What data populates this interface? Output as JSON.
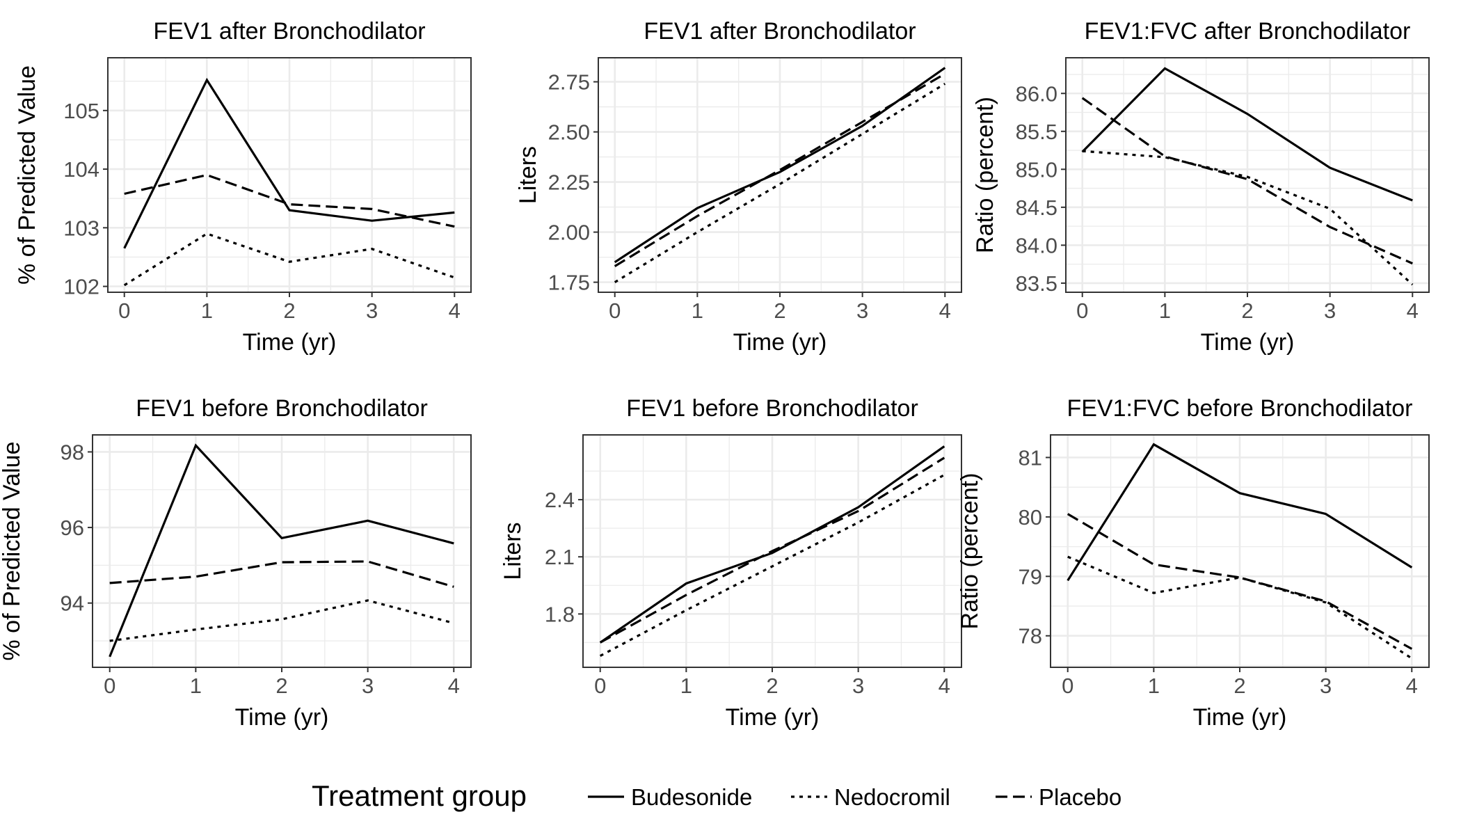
{
  "legend": {
    "title": "Treatment group",
    "position": "bottom",
    "entries": [
      {
        "name": "Budesonide",
        "linetype": "solid"
      },
      {
        "name": "Nedocromil",
        "linetype": "dotted"
      },
      {
        "name": "Placebo",
        "linetype": "dashed"
      }
    ]
  },
  "colors": {
    "line": "#000000",
    "grid": "#ebebeb",
    "border": "#333333",
    "tick_text": "#4d4d4d"
  },
  "chart_data": [
    {
      "type": "line",
      "title": "FEV1 after Bronchodilator",
      "xlabel": "Time (yr)",
      "ylabel": "% of Predicted Value",
      "x": [
        0,
        1,
        2,
        3,
        4
      ],
      "xticks": [
        0,
        1,
        2,
        3,
        4
      ],
      "xlim": [
        -0.2,
        4.2
      ],
      "ylim": [
        101.9,
        105.9
      ],
      "yticks": [
        102,
        103,
        104,
        105
      ],
      "ytick_labels": [
        "102",
        "103",
        "104",
        "105"
      ],
      "grid": true,
      "series": [
        {
          "name": "Budesonide",
          "values": [
            102.65,
            105.52,
            103.3,
            103.12,
            103.26
          ]
        },
        {
          "name": "Nedocromil",
          "values": [
            102.02,
            102.9,
            102.42,
            102.64,
            102.15
          ]
        },
        {
          "name": "Placebo",
          "values": [
            103.58,
            103.9,
            103.4,
            103.32,
            103.02
          ]
        }
      ]
    },
    {
      "type": "line",
      "title": "FEV1 after Bronchodilator",
      "xlabel": "Time (yr)",
      "ylabel": "Liters",
      "x": [
        0,
        1,
        2,
        3,
        4
      ],
      "xticks": [
        0,
        1,
        2,
        3,
        4
      ],
      "xlim": [
        -0.2,
        4.2
      ],
      "ylim": [
        1.7,
        2.87
      ],
      "yticks": [
        1.75,
        2.0,
        2.25,
        2.5,
        2.75
      ],
      "ytick_labels": [
        "1.75",
        "2.00",
        "2.25",
        "2.50",
        "2.75"
      ],
      "grid": true,
      "series": [
        {
          "name": "Budesonide",
          "values": [
            1.85,
            2.12,
            2.3,
            2.53,
            2.82
          ]
        },
        {
          "name": "Nedocromil",
          "values": [
            1.75,
            2.0,
            2.24,
            2.49,
            2.74
          ]
        },
        {
          "name": "Placebo",
          "values": [
            1.83,
            2.08,
            2.31,
            2.55,
            2.79
          ]
        }
      ]
    },
    {
      "type": "line",
      "title": "FEV1:FVC after Bronchodilator",
      "xlabel": "Time (yr)",
      "ylabel": "Ratio (percent)",
      "x": [
        0,
        1,
        2,
        3,
        4
      ],
      "xticks": [
        0,
        1,
        2,
        3,
        4
      ],
      "xlim": [
        -0.2,
        4.2
      ],
      "ylim": [
        83.38,
        86.47
      ],
      "yticks": [
        83.5,
        84.0,
        84.5,
        85.0,
        85.5,
        86.0
      ],
      "ytick_labels": [
        "83.5",
        "84.0",
        "84.5",
        "85.0",
        "85.5",
        "86.0"
      ],
      "grid": true,
      "series": [
        {
          "name": "Budesonide",
          "values": [
            85.23,
            86.33,
            85.73,
            85.02,
            84.59
          ]
        },
        {
          "name": "Nedocromil",
          "values": [
            85.24,
            85.16,
            84.9,
            84.48,
            83.48
          ]
        },
        {
          "name": "Placebo",
          "values": [
            85.94,
            85.17,
            84.87,
            84.24,
            83.76
          ]
        }
      ]
    },
    {
      "type": "line",
      "title": "FEV1 before Bronchodilator",
      "xlabel": "Time (yr)",
      "ylabel": "% of Predicted Value",
      "x": [
        0,
        1,
        2,
        3,
        4
      ],
      "xticks": [
        0,
        1,
        2,
        3,
        4
      ],
      "xlim": [
        -0.2,
        4.2
      ],
      "ylim": [
        92.3,
        98.45
      ],
      "yticks": [
        94,
        96,
        98
      ],
      "ytick_labels": [
        "94",
        "96",
        "98"
      ],
      "grid": true,
      "series": [
        {
          "name": "Budesonide",
          "values": [
            92.58,
            98.17,
            95.72,
            96.18,
            95.58
          ]
        },
        {
          "name": "Nedocromil",
          "values": [
            93.0,
            93.3,
            93.57,
            94.07,
            93.47
          ]
        },
        {
          "name": "Placebo",
          "values": [
            94.53,
            94.7,
            95.08,
            95.1,
            94.43
          ]
        }
      ]
    },
    {
      "type": "line",
      "title": "FEV1 before Bronchodilator",
      "xlabel": "Time (yr)",
      "ylabel": "Liters",
      "x": [
        0,
        1,
        2,
        3,
        4
      ],
      "xticks": [
        0,
        1,
        2,
        3,
        4
      ],
      "xlim": [
        -0.2,
        4.2
      ],
      "ylim": [
        1.52,
        2.74
      ],
      "yticks": [
        1.8,
        2.1,
        2.4
      ],
      "ytick_labels": [
        "1.8",
        "2.1",
        "2.4"
      ],
      "grid": true,
      "series": [
        {
          "name": "Budesonide",
          "values": [
            1.65,
            1.96,
            2.12,
            2.36,
            2.68
          ]
        },
        {
          "name": "Nedocromil",
          "values": [
            1.58,
            1.82,
            2.05,
            2.28,
            2.53
          ]
        },
        {
          "name": "Placebo",
          "values": [
            1.65,
            1.9,
            2.13,
            2.34,
            2.62
          ]
        }
      ]
    },
    {
      "type": "line",
      "title": "FEV1:FVC before Bronchodilator",
      "xlabel": "Time (yr)",
      "ylabel": "Ratio (percent)",
      "x": [
        0,
        1,
        2,
        3,
        4
      ],
      "xticks": [
        0,
        1,
        2,
        3,
        4
      ],
      "xlim": [
        -0.2,
        4.2
      ],
      "ylim": [
        77.47,
        81.38
      ],
      "yticks": [
        78,
        79,
        80,
        81
      ],
      "ytick_labels": [
        "78",
        "79",
        "80",
        "81"
      ],
      "grid": true,
      "series": [
        {
          "name": "Budesonide",
          "values": [
            78.93,
            81.22,
            80.4,
            80.05,
            79.15
          ]
        },
        {
          "name": "Nedocromil",
          "values": [
            79.33,
            78.72,
            78.98,
            78.56,
            77.62
          ]
        },
        {
          "name": "Placebo",
          "values": [
            80.05,
            79.2,
            78.98,
            78.58,
            77.78
          ]
        }
      ]
    }
  ]
}
